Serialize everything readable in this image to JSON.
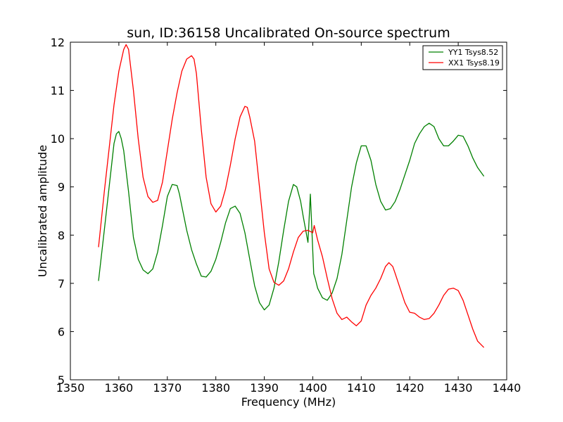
{
  "chart_data": {
    "type": "line",
    "title": "sun, ID:36158 Uncalibrated On-source spectrum",
    "xlabel": "Frequency (MHz)",
    "ylabel": "Uncalibrated amplitude",
    "xlim": [
      1350,
      1440
    ],
    "ylim": [
      5,
      12
    ],
    "xticks": [
      1350,
      1360,
      1370,
      1380,
      1390,
      1400,
      1410,
      1420,
      1430,
      1440
    ],
    "yticks": [
      5,
      6,
      7,
      8,
      9,
      10,
      11,
      12
    ],
    "grid": false,
    "legend_position": "top-right",
    "series": [
      {
        "name": "YY1 Tsys8.52",
        "color": "#008000",
        "x": [
          1355.8,
          1357,
          1358,
          1359,
          1359.5,
          1360,
          1360.5,
          1361,
          1362,
          1363,
          1364,
          1365,
          1366,
          1367,
          1368,
          1369,
          1370,
          1371,
          1372,
          1372.5,
          1373,
          1374,
          1375,
          1376,
          1377,
          1378,
          1379,
          1380,
          1381,
          1382,
          1383,
          1384,
          1385,
          1386,
          1387,
          1388,
          1389,
          1390,
          1391,
          1392,
          1393,
          1394,
          1395,
          1396,
          1396.7,
          1397.5,
          1398,
          1399,
          1399.5,
          1400.2,
          1400.5,
          1401,
          1402,
          1403,
          1404,
          1405,
          1406,
          1407,
          1408,
          1409,
          1410,
          1411,
          1412,
          1413,
          1414,
          1415,
          1416,
          1417,
          1418,
          1419,
          1420,
          1421,
          1422,
          1423,
          1424,
          1425,
          1426,
          1427,
          1428,
          1429,
          1430,
          1431,
          1432,
          1433,
          1434,
          1435.3
        ],
        "y": [
          7.05,
          8.1,
          9.0,
          9.9,
          10.1,
          10.15,
          10.0,
          9.75,
          8.9,
          7.95,
          7.5,
          7.28,
          7.2,
          7.3,
          7.65,
          8.2,
          8.8,
          9.05,
          9.03,
          8.85,
          8.6,
          8.1,
          7.7,
          7.4,
          7.15,
          7.13,
          7.25,
          7.5,
          7.85,
          8.25,
          8.55,
          8.6,
          8.45,
          8.05,
          7.5,
          6.95,
          6.6,
          6.45,
          6.55,
          6.9,
          7.45,
          8.1,
          8.7,
          9.05,
          9.0,
          8.7,
          8.4,
          7.85,
          8.85,
          7.2,
          7.1,
          6.9,
          6.7,
          6.65,
          6.8,
          7.1,
          7.6,
          8.3,
          9.0,
          9.5,
          9.85,
          9.85,
          9.55,
          9.05,
          8.7,
          8.52,
          8.55,
          8.7,
          8.95,
          9.25,
          9.55,
          9.9,
          10.1,
          10.25,
          10.32,
          10.25,
          10.0,
          9.85,
          9.85,
          9.95,
          10.07,
          10.05,
          9.85,
          9.6,
          9.4,
          9.22
        ]
      },
      {
        "name": "XX1 Tsys8.19",
        "color": "#ff0000",
        "x": [
          1355.8,
          1357,
          1358,
          1359,
          1360,
          1361,
          1361.5,
          1362,
          1363,
          1364,
          1365,
          1366,
          1367,
          1368,
          1369,
          1370,
          1371,
          1372,
          1373,
          1374,
          1375,
          1375.5,
          1376,
          1377,
          1378,
          1379,
          1380,
          1381,
          1382,
          1383,
          1384,
          1385,
          1386,
          1386.5,
          1387,
          1388,
          1389,
          1390,
          1391,
          1392,
          1393,
          1394,
          1395,
          1396,
          1397,
          1398,
          1399,
          1400,
          1400.3,
          1401,
          1402,
          1403,
          1404,
          1405,
          1406,
          1407,
          1408,
          1409,
          1410,
          1411,
          1412,
          1413,
          1414,
          1415,
          1415.7,
          1416.5,
          1417,
          1418,
          1419,
          1420,
          1421,
          1422,
          1423,
          1424,
          1425,
          1426,
          1427,
          1428,
          1429,
          1430,
          1431,
          1432,
          1433,
          1434,
          1435.3
        ],
        "y": [
          7.75,
          8.9,
          9.8,
          10.7,
          11.4,
          11.85,
          11.95,
          11.85,
          11.0,
          10.0,
          9.2,
          8.8,
          8.68,
          8.72,
          9.1,
          9.75,
          10.4,
          10.95,
          11.4,
          11.65,
          11.72,
          11.65,
          11.35,
          10.2,
          9.2,
          8.65,
          8.48,
          8.6,
          8.95,
          9.45,
          10.0,
          10.45,
          10.67,
          10.65,
          10.45,
          9.95,
          9.0,
          8.05,
          7.3,
          7.02,
          6.96,
          7.05,
          7.3,
          7.65,
          7.95,
          8.08,
          8.1,
          8.05,
          8.2,
          7.9,
          7.55,
          7.1,
          6.68,
          6.38,
          6.25,
          6.3,
          6.2,
          6.12,
          6.22,
          6.55,
          6.75,
          6.9,
          7.1,
          7.35,
          7.43,
          7.35,
          7.2,
          6.9,
          6.6,
          6.4,
          6.38,
          6.3,
          6.25,
          6.27,
          6.38,
          6.55,
          6.75,
          6.88,
          6.9,
          6.85,
          6.65,
          6.35,
          6.05,
          5.8,
          5.67
        ]
      }
    ]
  }
}
